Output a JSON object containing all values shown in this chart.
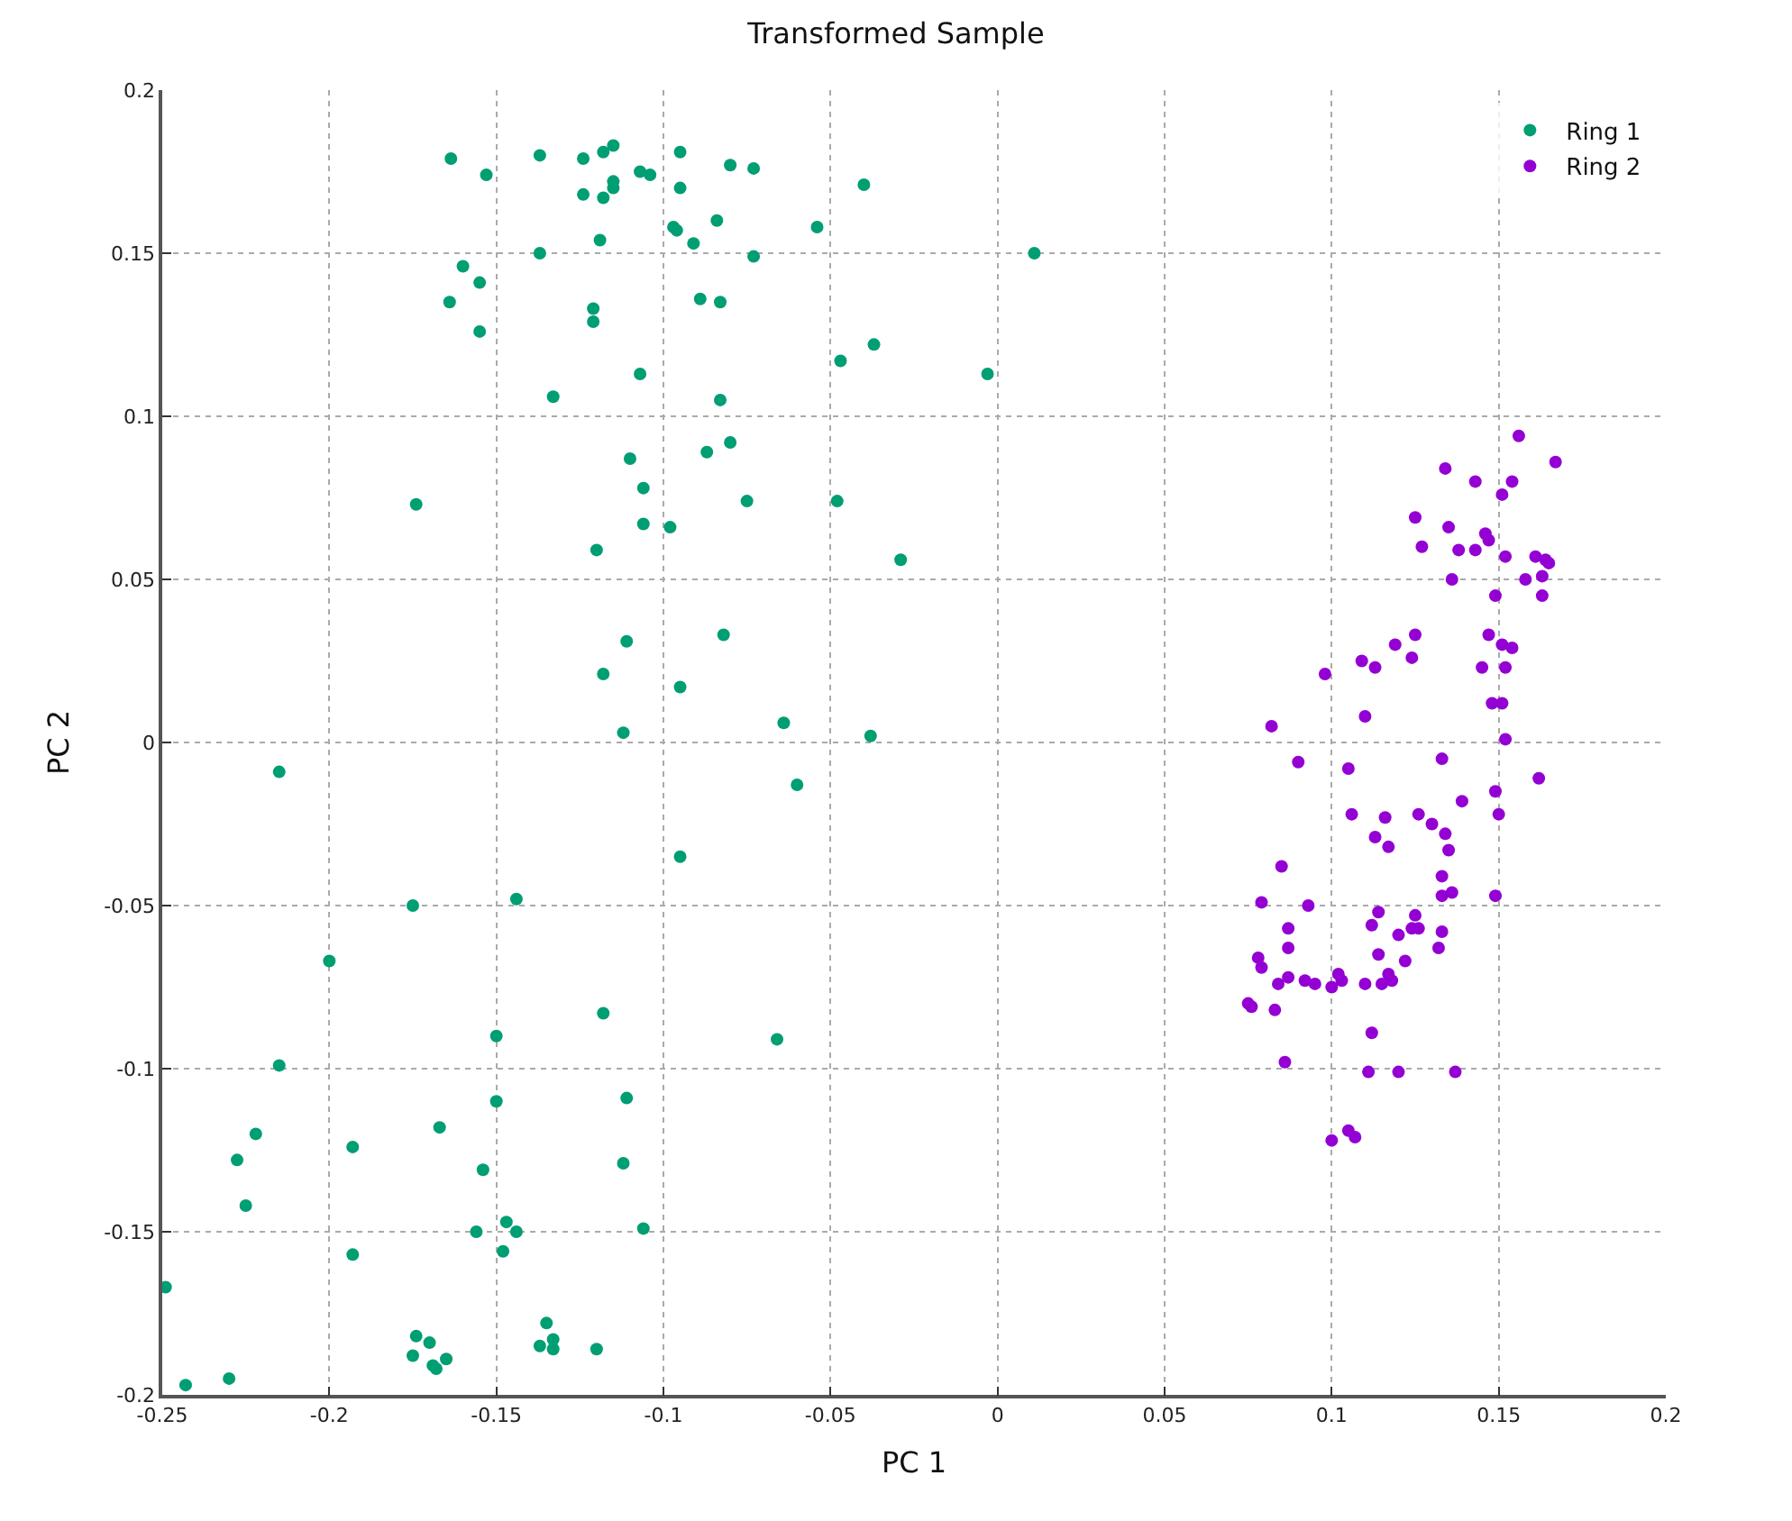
{
  "chart_data": {
    "type": "scatter",
    "title": "Transformed Sample",
    "xlabel": "PC 1",
    "ylabel": "PC 2",
    "xlim": [
      -0.25,
      0.2
    ],
    "ylim": [
      -0.2,
      0.2
    ],
    "xticks": [
      -0.25,
      -0.2,
      -0.15,
      -0.1,
      -0.05,
      0,
      0.05,
      0.1,
      0.15,
      0.2
    ],
    "yticks": [
      -0.2,
      -0.15,
      -0.1,
      -0.05,
      0,
      0.05,
      0.1,
      0.15,
      0.2
    ],
    "grid": true,
    "legend": "top right",
    "marker": "circle",
    "series": [
      {
        "name": "Ring 1",
        "color": "#009e73",
        "x": [
          -0.1636,
          -0.153,
          -0.137,
          -0.124,
          -0.118,
          -0.115,
          -0.095,
          -0.08,
          -0.073,
          -0.124,
          -0.118,
          -0.115,
          -0.115,
          -0.107,
          -0.104,
          -0.095,
          -0.04,
          -0.084,
          -0.097,
          -0.096,
          -0.119,
          -0.091,
          -0.054,
          -0.137,
          -0.073,
          0.011,
          -0.16,
          -0.155,
          -0.164,
          -0.155,
          -0.121,
          -0.121,
          -0.089,
          -0.083,
          -0.037,
          -0.047,
          -0.003,
          -0.107,
          -0.133,
          -0.083,
          -0.11,
          -0.08,
          -0.087,
          -0.106,
          -0.174,
          -0.075,
          -0.106,
          -0.098,
          -0.048,
          -0.12,
          -0.029,
          -0.082,
          -0.111,
          -0.118,
          -0.095,
          -0.112,
          -0.038,
          -0.064,
          -0.06,
          -0.215,
          -0.095,
          -0.144,
          -0.175,
          -0.2,
          -0.118,
          -0.15,
          -0.066,
          -0.215,
          -0.111,
          -0.15,
          -0.167,
          -0.193,
          -0.2276,
          -0.222,
          -0.225,
          -0.154,
          -0.112,
          -0.193,
          -0.147,
          -0.144,
          -0.156,
          -0.148,
          -0.106,
          -0.249,
          -0.174,
          -0.17,
          -0.175,
          -0.169,
          -0.168,
          -0.165,
          -0.135,
          -0.137,
          -0.133,
          -0.133,
          -0.12,
          -0.243,
          -0.23
        ],
        "values": [
          0.179,
          0.174,
          0.18,
          0.179,
          0.181,
          0.183,
          0.181,
          0.177,
          0.176,
          0.168,
          0.167,
          0.172,
          0.17,
          0.175,
          0.174,
          0.17,
          0.171,
          0.16,
          0.158,
          0.157,
          0.154,
          0.153,
          0.158,
          0.15,
          0.149,
          0.15,
          0.146,
          0.141,
          0.135,
          0.126,
          0.133,
          0.129,
          0.136,
          0.135,
          0.122,
          0.117,
          0.113,
          0.113,
          0.106,
          0.105,
          0.087,
          0.092,
          0.089,
          0.078,
          0.073,
          0.074,
          0.067,
          0.066,
          0.074,
          0.059,
          0.056,
          0.033,
          0.031,
          0.021,
          0.017,
          0.003,
          0.002,
          0.006,
          -0.013,
          -0.009,
          -0.035,
          -0.048,
          -0.05,
          -0.067,
          -0.083,
          -0.09,
          -0.091,
          -0.099,
          -0.109,
          -0.11,
          -0.118,
          -0.124,
          -0.128,
          -0.12,
          -0.142,
          -0.131,
          -0.129,
          -0.157,
          -0.147,
          -0.15,
          -0.15,
          -0.156,
          -0.149,
          -0.167,
          -0.182,
          -0.184,
          -0.188,
          -0.191,
          -0.192,
          -0.189,
          -0.178,
          -0.185,
          -0.186,
          -0.183,
          -0.186,
          -0.197,
          -0.195
        ]
      },
      {
        "name": "Ring 2",
        "color": "#9400d3",
        "x": [
          0.156,
          0.167,
          0.134,
          0.143,
          0.154,
          0.151,
          0.125,
          0.135,
          0.146,
          0.147,
          0.127,
          0.138,
          0.143,
          0.152,
          0.161,
          0.164,
          0.165,
          0.163,
          0.158,
          0.136,
          0.149,
          0.163,
          0.125,
          0.147,
          0.119,
          0.151,
          0.154,
          0.109,
          0.124,
          0.113,
          0.145,
          0.152,
          0.098,
          0.148,
          0.151,
          0.11,
          0.082,
          0.152,
          0.09,
          0.105,
          0.133,
          0.162,
          0.139,
          0.149,
          0.15,
          0.106,
          0.126,
          0.116,
          0.13,
          0.113,
          0.134,
          0.117,
          0.135,
          0.085,
          0.133,
          0.079,
          0.093,
          0.133,
          0.136,
          0.149,
          0.114,
          0.125,
          0.087,
          0.112,
          0.124,
          0.126,
          0.12,
          0.133,
          0.087,
          0.132,
          0.114,
          0.078,
          0.079,
          0.122,
          0.117,
          0.102,
          0.087,
          0.092,
          0.084,
          0.095,
          0.103,
          0.118,
          0.11,
          0.115,
          0.1,
          0.075,
          0.076,
          0.083,
          0.112,
          0.086,
          0.111,
          0.12,
          0.137,
          0.105,
          0.107,
          0.1
        ],
        "values": [
          0.094,
          0.086,
          0.084,
          0.08,
          0.08,
          0.076,
          0.069,
          0.066,
          0.064,
          0.062,
          0.06,
          0.059,
          0.059,
          0.057,
          0.057,
          0.056,
          0.055,
          0.051,
          0.05,
          0.05,
          0.045,
          0.045,
          0.033,
          0.033,
          0.03,
          0.03,
          0.029,
          0.025,
          0.026,
          0.023,
          0.023,
          0.023,
          0.021,
          0.012,
          0.012,
          0.008,
          0.005,
          0.001,
          -0.006,
          -0.008,
          -0.005,
          -0.011,
          -0.018,
          -0.015,
          -0.022,
          -0.022,
          -0.022,
          -0.023,
          -0.025,
          -0.029,
          -0.028,
          -0.032,
          -0.033,
          -0.038,
          -0.041,
          -0.049,
          -0.05,
          -0.047,
          -0.046,
          -0.047,
          -0.052,
          -0.053,
          -0.057,
          -0.056,
          -0.057,
          -0.057,
          -0.059,
          -0.058,
          -0.063,
          -0.063,
          -0.065,
          -0.066,
          -0.069,
          -0.067,
          -0.071,
          -0.071,
          -0.072,
          -0.073,
          -0.074,
          -0.074,
          -0.073,
          -0.073,
          -0.074,
          -0.074,
          -0.075,
          -0.08,
          -0.081,
          -0.082,
          -0.089,
          -0.098,
          -0.101,
          -0.101,
          -0.101,
          -0.119,
          -0.121,
          -0.122
        ]
      }
    ]
  }
}
